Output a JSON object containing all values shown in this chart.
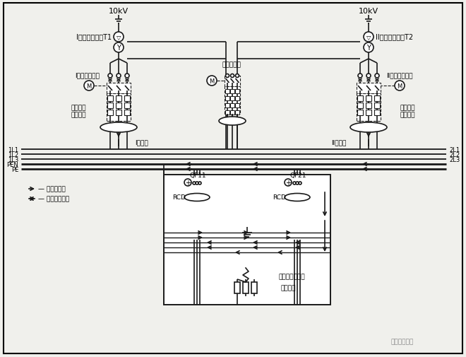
{
  "bg_color": "#f0f0ec",
  "line_color": "#1a1a1a",
  "dashed_color": "#222222",
  "title_text": "I段电力变压器T1",
  "title_text2": "II段电力变压器T2",
  "label_10kv_left": "10kV",
  "label_10kv_right": "10kV",
  "label_breaker1": "I段进线断路器",
  "label_breaker2": "II段进线断路器",
  "label_bus_breaker": "母联断路器",
  "label_gnd_detect1": "接地故障\n电流检测",
  "label_gnd_detect2": "接地故障\n电流检测",
  "label_bus1": "I段母线",
  "label_bus2": "II段母线",
  "label_neutral": "— 中性线电流",
  "label_ground": "— 接地故障电流",
  "label_qf11": "QF11",
  "label_qf21": "QF21",
  "label_rcd1": "RCD",
  "label_rcd2": "RCD",
  "label_fault": "单相接地故障点",
  "label_load": "用电设备",
  "label_watermark": "电气知识课堂",
  "bus_labels_left": [
    "1L1",
    "1L2",
    "1L3",
    "PEN",
    "PE"
  ],
  "bus_labels_right": [
    "2L1",
    "2L2",
    "2L3"
  ]
}
